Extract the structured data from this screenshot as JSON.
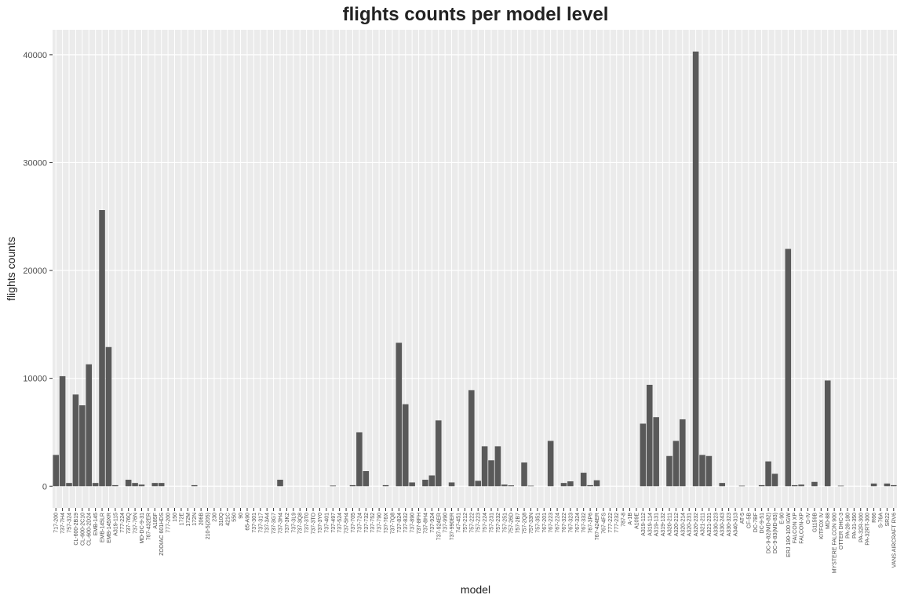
{
  "chart_data": {
    "type": "bar",
    "title": "flights counts per model level",
    "x_label": "model",
    "y_label": "flights counts",
    "categories": [
      "717-200",
      "737-7H4",
      "757-324",
      "CL-600-2B19",
      "CL-600-2C10",
      "CL-600-2D24",
      "EMB-145",
      "EMB-145LR",
      "EMB-145XR",
      "A319-115",
      "777-224",
      "737-76Q",
      "737-76N",
      "MD-DC-9-31",
      "767-432ER",
      "A185F",
      "ZODIAC 601HDS",
      "777-200",
      "150",
      "172E",
      "172M",
      "172N",
      "206B",
      "210-5(205)",
      "230",
      "310Q",
      "421C",
      "550",
      "90",
      "65-A90",
      "737-301",
      "737-317",
      "737-3A4",
      "737-3G7",
      "737-3H4",
      "737-3K2",
      "737-3L9",
      "737-3Q8",
      "737-3T0",
      "737-3TO",
      "737-3Y0",
      "737-401",
      "737-497",
      "737-524",
      "737-5H4",
      "737-705",
      "737-724",
      "737-732",
      "737-752",
      "737-790",
      "737-76X",
      "737-7Q8",
      "737-824",
      "737-832",
      "737-890",
      "737-8FH",
      "737-8H4",
      "737-924",
      "737-924ER",
      "737-990",
      "737-990ER",
      "747-451",
      "757-212",
      "757-222",
      "757-223",
      "757-224",
      "757-231",
      "757-232",
      "757-251",
      "757-26D",
      "757-2B7",
      "757-2Q8",
      "757-33N",
      "757-351",
      "767-201",
      "767-223",
      "767-224",
      "767-322",
      "767-323",
      "767-324",
      "767-332",
      "767-3P6",
      "767-424ER",
      "767-4FS",
      "777-222",
      "777-232",
      "787-8",
      "A-1B",
      "A109E",
      "A319-112",
      "A319-114",
      "A319-131",
      "A319-132",
      "A320-211",
      "A320-212",
      "A320-214",
      "A320-231",
      "A320-232",
      "A321-211",
      "A321-231",
      "A330-223",
      "A330-243",
      "A330-323",
      "A340-313",
      "AT-5",
      "CF-5B",
      "DC-7BF",
      "DC-9-51",
      "DC-9-82(MD-82)",
      "DC-9-83(MD-83)",
      "E-90",
      "ERJ 190-100 IGW",
      "FALCON XP",
      "FALCON-XP",
      "G-IV",
      "G1159B",
      "KITFOX IV",
      "MD-88",
      "MYSTERE FALCON 900",
      "OTTER DHC-3",
      "PA-28-180",
      "PA-31-350",
      "PA-32R-300",
      "PA-32RT-300",
      "R66",
      "S-76A",
      "SR22",
      "VANS AIRCRAFT RV6"
    ],
    "values": [
      2900,
      10200,
      300,
      8500,
      7500,
      11300,
      300,
      25600,
      12900,
      100,
      0,
      600,
      300,
      150,
      0,
      300,
      300,
      0,
      0,
      0,
      0,
      100,
      0,
      0,
      0,
      0,
      0,
      0,
      0,
      0,
      0,
      0,
      0,
      0,
      600,
      0,
      0,
      0,
      0,
      0,
      0,
      0,
      60,
      0,
      0,
      100,
      5000,
      1400,
      0,
      0,
      100,
      0,
      13300,
      7600,
      350,
      0,
      600,
      1000,
      6100,
      0,
      350,
      0,
      0,
      8900,
      500,
      3700,
      2400,
      3700,
      150,
      80,
      0,
      2200,
      50,
      0,
      0,
      4200,
      0,
      300,
      450,
      0,
      1250,
      100,
      550,
      0,
      0,
      0,
      0,
      0,
      0,
      5800,
      9400,
      6400,
      0,
      2800,
      4200,
      6200,
      0,
      40300,
      2900,
      2800,
      0,
      300,
      0,
      0,
      50,
      0,
      0,
      100,
      2300,
      1150,
      0,
      22000,
      100,
      150,
      0,
      400,
      0,
      9800,
      0,
      50,
      0,
      0,
      0,
      0,
      250,
      0,
      250,
      100
    ],
    "color": "#595959",
    "ylim": [
      -2015,
      42315
    ],
    "yticks": [
      0,
      10000,
      20000,
      30000,
      40000
    ],
    "grid": true
  }
}
